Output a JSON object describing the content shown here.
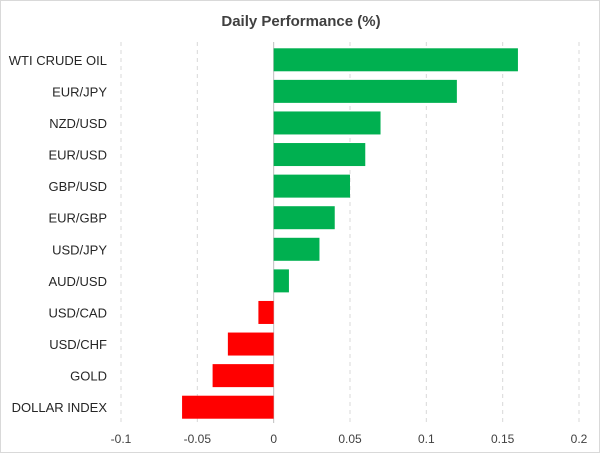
{
  "chart_data": {
    "type": "bar",
    "orientation": "horizontal",
    "title": "Daily Performance (%)",
    "xlabel": "",
    "ylabel": "",
    "categories": [
      "WTI CRUDE OIL",
      "EUR/JPY",
      "NZD/USD",
      "EUR/USD",
      "GBP/USD",
      "EUR/GBP",
      "USD/JPY",
      "AUD/USD",
      "USD/CAD",
      "USD/CHF",
      "GOLD",
      "DOLLAR INDEX"
    ],
    "values": [
      0.16,
      0.12,
      0.07,
      0.06,
      0.05,
      0.04,
      0.03,
      0.01,
      -0.01,
      -0.03,
      -0.04,
      -0.06
    ],
    "xlim": [
      -0.1,
      0.2
    ],
    "xticks": [
      -0.1,
      -0.05,
      0,
      0.05,
      0.1,
      0.15,
      0.2
    ],
    "xtick_labels": [
      "-0.1",
      "-0.05",
      "0",
      "0.05",
      "0.1",
      "0.15",
      "0.2"
    ],
    "grid": true,
    "legend": "none",
    "colors": {
      "positive": "#00b050",
      "negative": "#ff0000"
    }
  }
}
